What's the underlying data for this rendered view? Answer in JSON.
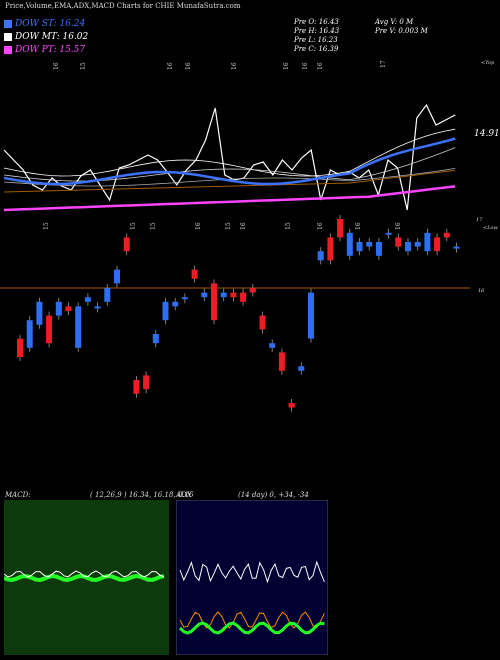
{
  "title": "Price,Volume,EMA,ADX,MACD Charts for CHIE MunafaSutra.com",
  "legend": [
    {
      "label": "DOW ST: 16.24",
      "color": "#3b72ff"
    },
    {
      "label": "DOW MT: 16.02",
      "color": "#ffffff"
    },
    {
      "label": "DOW PT: 15.57",
      "color": "#ff44ff"
    }
  ],
  "info": {
    "prev_open": "Pre   O: 16.43",
    "prev_high": "Pre   H: 16.43",
    "prev_low": "Pre   L: 16.23",
    "prev_close": "Pre   C: 16.39",
    "avg_vol": "Avg V: 0   M",
    "prev_vol": "Pre   V: 0.003 M"
  },
  "ema_value_label": "14.91",
  "top_right_label": "<Top",
  "low_right_label": "<Low",
  "price_line_label": "16",
  "upper_right_17": "17",
  "macd_header": {
    "name": "MACD:",
    "values": "( 12,26,9 ) 16.34, 16.18, 0.16"
  },
  "adx_header": {
    "name": "ADX",
    "values": "(14  day) 0,  +34,  -34"
  },
  "colors": {
    "ema_short": "#3b72ff",
    "ema_mid": "#ffffff",
    "ema_long": "#ff44ff",
    "up": "#2e6ff2",
    "down": "#ee1c25",
    "price_line": "#a35a00",
    "macd_bg": "#0c3a0c",
    "adx_bg": "#000033"
  },
  "chart_data": {
    "type": "candlestick",
    "series_candles": [
      {
        "o": 15.45,
        "c": 15.25
      },
      {
        "o": 15.35,
        "c": 15.65
      },
      {
        "o": 15.6,
        "c": 15.85
      },
      {
        "o": 15.7,
        "c": 15.4
      },
      {
        "o": 15.7,
        "c": 15.85
      },
      {
        "o": 15.8,
        "c": 15.75
      },
      {
        "o": 15.35,
        "c": 15.8
      },
      {
        "o": 15.85,
        "c": 15.9
      },
      {
        "o": 15.8,
        "c": 15.8
      },
      {
        "o": 15.85,
        "c": 16.0
      },
      {
        "o": 16.05,
        "c": 16.2
      },
      {
        "o": 16.55,
        "c": 16.4
      },
      {
        "o": 15.0,
        "c": 14.85
      },
      {
        "o": 15.05,
        "c": 14.9
      },
      {
        "o": 15.4,
        "c": 15.5
      },
      {
        "o": 15.65,
        "c": 15.85
      },
      {
        "o": 15.8,
        "c": 15.85
      },
      {
        "o": 15.9,
        "c": 15.9
      },
      {
        "o": 16.2,
        "c": 16.1
      },
      {
        "o": 15.9,
        "c": 15.95
      },
      {
        "o": 16.05,
        "c": 15.65
      },
      {
        "o": 15.9,
        "c": 15.95
      },
      {
        "o": 15.95,
        "c": 15.9
      },
      {
        "o": 15.95,
        "c": 15.85
      },
      {
        "o": 16.0,
        "c": 15.95
      },
      {
        "o": 15.7,
        "c": 15.55
      },
      {
        "o": 15.35,
        "c": 15.4
      },
      {
        "o": 15.3,
        "c": 15.1
      },
      {
        "o": 14.75,
        "c": 14.7
      },
      {
        "o": 15.1,
        "c": 15.15
      },
      {
        "o": 15.45,
        "c": 15.95
      },
      {
        "o": 16.3,
        "c": 16.4
      },
      {
        "o": 16.55,
        "c": 16.3
      },
      {
        "o": 16.75,
        "c": 16.55
      },
      {
        "o": 16.35,
        "c": 16.6
      },
      {
        "o": 16.4,
        "c": 16.5
      },
      {
        "o": 16.45,
        "c": 16.5
      },
      {
        "o": 16.35,
        "c": 16.5
      },
      {
        "o": 16.6,
        "c": 16.6
      },
      {
        "o": 16.55,
        "c": 16.45
      },
      {
        "o": 16.4,
        "c": 16.5
      },
      {
        "o": 16.45,
        "c": 16.5
      },
      {
        "o": 16.4,
        "c": 16.6
      },
      {
        "o": 16.55,
        "c": 16.4
      },
      {
        "o": 16.6,
        "c": 16.55
      },
      {
        "o": 16.45,
        "c": 16.45
      }
    ]
  }
}
